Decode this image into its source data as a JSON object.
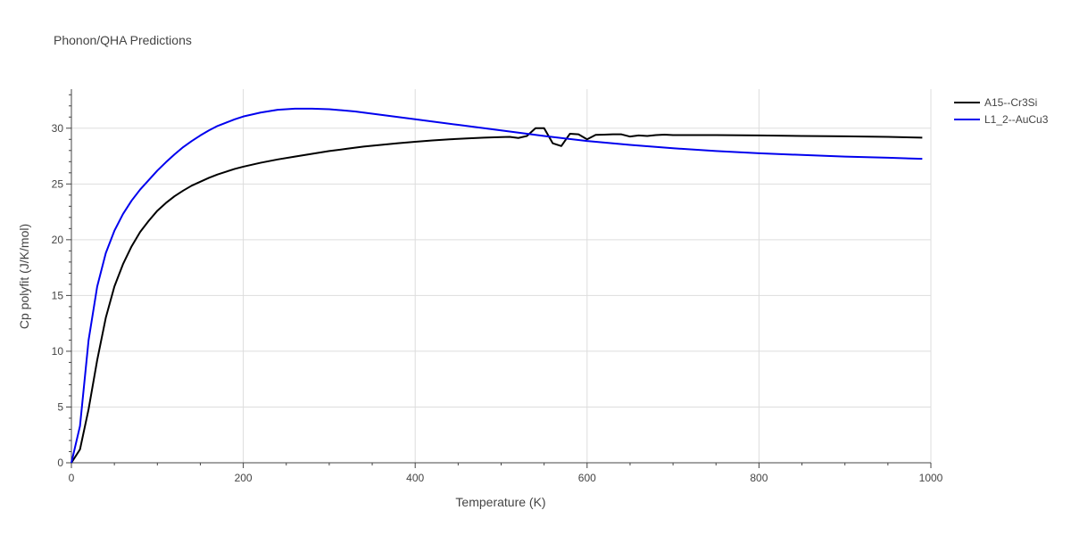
{
  "chart_data": {
    "type": "line",
    "title": "Phonon/QHA Predictions",
    "xlabel": "Temperature (K)",
    "ylabel": "Cp polyfit (J/K/mol)",
    "xlim": [
      0,
      1000
    ],
    "ylim": [
      0,
      33.5
    ],
    "xticks": [
      0,
      200,
      400,
      600,
      800,
      1000
    ],
    "yticks": [
      0,
      5,
      10,
      15,
      20,
      25,
      30
    ],
    "grid": true,
    "legend_position": "top-right",
    "series": [
      {
        "name": "A15--Cr3Si",
        "color": "#000000",
        "x": [
          0,
          10,
          20,
          30,
          40,
          50,
          60,
          70,
          80,
          90,
          100,
          110,
          120,
          130,
          140,
          150,
          160,
          170,
          180,
          190,
          200,
          220,
          240,
          260,
          280,
          300,
          320,
          340,
          360,
          380,
          400,
          420,
          440,
          460,
          480,
          500,
          510,
          520,
          530,
          540,
          550,
          560,
          570,
          580,
          590,
          600,
          610,
          620,
          630,
          640,
          650,
          660,
          670,
          680,
          690,
          700,
          750,
          800,
          850,
          900,
          950,
          990
        ],
        "y": [
          0,
          1.2,
          4.8,
          9.2,
          13.0,
          15.8,
          17.8,
          19.4,
          20.7,
          21.7,
          22.6,
          23.3,
          23.9,
          24.4,
          24.85,
          25.2,
          25.55,
          25.85,
          26.1,
          26.35,
          26.55,
          26.9,
          27.2,
          27.45,
          27.7,
          27.95,
          28.15,
          28.35,
          28.5,
          28.65,
          28.78,
          28.9,
          29.0,
          29.08,
          29.15,
          29.2,
          29.22,
          29.12,
          29.3,
          30.0,
          30.0,
          28.65,
          28.4,
          29.5,
          29.45,
          29.0,
          29.4,
          29.42,
          29.45,
          29.45,
          29.25,
          29.35,
          29.3,
          29.38,
          29.42,
          29.38,
          29.38,
          29.35,
          29.3,
          29.27,
          29.22,
          29.15
        ]
      },
      {
        "name": "L1_2--AuCu3",
        "color": "#0000ee",
        "x": [
          0,
          10,
          20,
          30,
          40,
          50,
          60,
          70,
          80,
          90,
          100,
          110,
          120,
          130,
          140,
          150,
          160,
          170,
          180,
          190,
          200,
          220,
          240,
          260,
          280,
          300,
          330,
          360,
          400,
          450,
          500,
          550,
          600,
          650,
          700,
          750,
          800,
          850,
          900,
          950,
          990
        ],
        "y": [
          0,
          3.3,
          11.0,
          15.8,
          18.8,
          20.8,
          22.3,
          23.5,
          24.5,
          25.35,
          26.2,
          26.95,
          27.65,
          28.3,
          28.85,
          29.35,
          29.8,
          30.2,
          30.5,
          30.8,
          31.05,
          31.4,
          31.65,
          31.75,
          31.75,
          31.7,
          31.5,
          31.2,
          30.8,
          30.3,
          29.8,
          29.3,
          28.85,
          28.5,
          28.2,
          27.95,
          27.75,
          27.6,
          27.45,
          27.35,
          27.25
        ]
      }
    ]
  }
}
